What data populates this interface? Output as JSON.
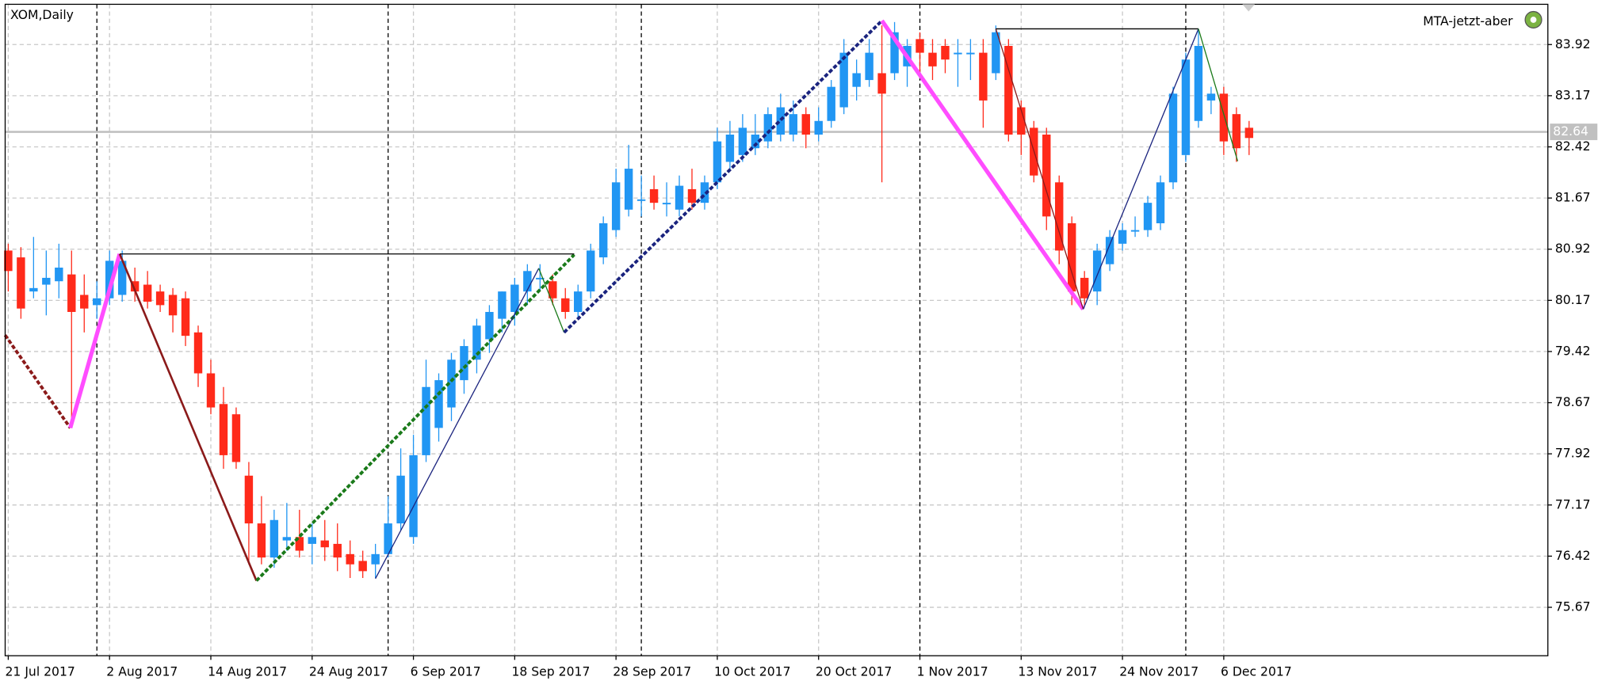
{
  "chart_data": {
    "type": "candlestick",
    "title": "XOM,Daily",
    "indicator": "MTA-jetzt-aber",
    "categories": [
      "21 Jul 2017",
      null,
      null,
      null,
      null,
      null,
      null,
      null,
      "2 Aug 2017",
      null,
      null,
      null,
      null,
      null,
      null,
      null,
      "14 Aug 2017",
      null,
      null,
      null,
      null,
      null,
      null,
      null,
      "24 Aug 2017",
      null,
      null,
      null,
      null,
      null,
      null,
      null,
      "6 Sep 2017",
      null,
      null,
      null,
      null,
      null,
      null,
      null,
      "18 Sep 2017",
      null,
      null,
      null,
      null,
      null,
      null,
      null,
      "28 Sep 2017",
      null,
      null,
      null,
      null,
      null,
      null,
      null,
      "10 Oct 2017",
      null,
      null,
      null,
      null,
      null,
      null,
      null,
      "20 Oct 2017",
      null,
      null,
      null,
      null,
      null,
      null,
      null,
      "1 Nov 2017",
      null,
      null,
      null,
      null,
      null,
      null,
      null,
      "13 Nov 2017",
      null,
      null,
      null,
      null,
      null,
      null,
      null,
      "24 Nov 2017",
      null,
      null,
      null,
      null,
      null,
      null,
      null,
      "6 Dec 2017",
      null,
      null
    ],
    "open": [
      80.9,
      80.8,
      80.3,
      80.4,
      80.45,
      80.55,
      80.25,
      80.1,
      80.2,
      80.25,
      80.45,
      80.4,
      80.3,
      80.25,
      80.2,
      79.7,
      79.1,
      78.65,
      78.5,
      77.6,
      76.9,
      76.4,
      76.65,
      76.7,
      76.6,
      76.65,
      76.6,
      76.45,
      76.35,
      76.3,
      76.45,
      76.9,
      76.7,
      77.9,
      78.3,
      78.6,
      79.0,
      79.3,
      79.6,
      79.9,
      80.0,
      80.3,
      80.5,
      80.45,
      80.2,
      80.0,
      80.3,
      80.8,
      81.2,
      81.5,
      81.65,
      81.8,
      81.6,
      81.5,
      81.8,
      81.6,
      81.9,
      82.2,
      82.3,
      82.4,
      82.5,
      82.6,
      82.6,
      82.9,
      82.6,
      82.8,
      83.0,
      83.3,
      83.4,
      83.5,
      83.5,
      83.6,
      84.0,
      83.8,
      83.9,
      83.8,
      83.8,
      83.8,
      83.5,
      83.9,
      83.0,
      82.7,
      82.6,
      81.9,
      81.3,
      80.5,
      80.3,
      80.7,
      81.0,
      81.2,
      81.2,
      81.3,
      81.9,
      82.3,
      82.8,
      83.1,
      83.2,
      82.9,
      82.7
    ],
    "high": [
      81.0,
      80.95,
      81.1,
      80.9,
      81.0,
      80.9,
      80.55,
      80.45,
      80.9,
      80.9,
      80.65,
      80.6,
      80.4,
      80.35,
      80.3,
      79.8,
      79.3,
      78.9,
      78.6,
      77.8,
      77.3,
      77.1,
      77.2,
      77.1,
      76.9,
      76.95,
      76.9,
      76.65,
      76.5,
      76.6,
      77.3,
      78.0,
      78.2,
      79.3,
      79.1,
      79.4,
      79.6,
      79.9,
      80.1,
      80.3,
      80.5,
      80.7,
      80.7,
      80.55,
      80.35,
      80.4,
      81.0,
      81.4,
      82.1,
      82.45,
      82.0,
      82.0,
      81.9,
      82.0,
      82.1,
      82.0,
      82.7,
      82.8,
      82.9,
      82.9,
      83.0,
      83.2,
      83.1,
      83.0,
      83.0,
      83.4,
      84.0,
      83.7,
      84.0,
      84.2,
      84.25,
      84.0,
      84.1,
      84.0,
      84.0,
      84.0,
      84.0,
      84.0,
      84.2,
      84.0,
      83.1,
      82.8,
      82.7,
      82.0,
      81.4,
      80.6,
      81.0,
      81.2,
      81.3,
      81.4,
      81.7,
      82.0,
      83.3,
      83.8,
      84.15,
      83.3,
      83.3,
      83.0,
      82.8
    ],
    "low": [
      80.3,
      79.9,
      80.2,
      79.95,
      80.2,
      78.4,
      79.7,
      79.9,
      80.1,
      80.15,
      80.15,
      80.05,
      80.0,
      79.7,
      79.5,
      78.9,
      78.5,
      77.7,
      77.7,
      76.3,
      76.3,
      76.25,
      76.5,
      76.4,
      76.3,
      76.35,
      76.2,
      76.1,
      76.1,
      76.1,
      76.4,
      76.8,
      76.6,
      77.8,
      78.1,
      78.4,
      78.8,
      79.1,
      79.4,
      79.7,
      79.8,
      80.1,
      80.3,
      80.1,
      79.9,
      79.9,
      80.2,
      80.7,
      81.1,
      81.4,
      81.4,
      81.5,
      81.4,
      81.4,
      81.5,
      81.5,
      81.8,
      82.1,
      82.2,
      82.3,
      82.4,
      82.5,
      82.5,
      82.4,
      82.5,
      82.7,
      82.9,
      83.1,
      83.3,
      81.9,
      83.4,
      83.3,
      83.5,
      83.4,
      83.5,
      83.3,
      83.4,
      82.7,
      83.4,
      82.5,
      82.3,
      81.9,
      81.2,
      80.7,
      80.1,
      80.1,
      80.1,
      80.6,
      80.9,
      81.1,
      81.1,
      81.2,
      81.8,
      82.2,
      82.7,
      82.9,
      82.3,
      82.2,
      82.3
    ],
    "close": [
      80.6,
      80.05,
      80.35,
      80.5,
      80.65,
      80.0,
      80.05,
      80.2,
      80.75,
      80.75,
      80.3,
      80.15,
      80.1,
      79.95,
      79.65,
      79.1,
      78.6,
      77.9,
      77.8,
      76.9,
      76.4,
      76.95,
      76.7,
      76.5,
      76.7,
      76.55,
      76.4,
      76.3,
      76.2,
      76.45,
      76.9,
      77.6,
      77.9,
      78.9,
      79.0,
      79.3,
      79.5,
      79.8,
      80.0,
      80.3,
      80.4,
      80.6,
      80.5,
      80.2,
      80.0,
      80.3,
      80.9,
      81.3,
      81.9,
      82.1,
      81.65,
      81.6,
      81.6,
      81.85,
      81.6,
      81.9,
      82.5,
      82.6,
      82.7,
      82.6,
      82.9,
      83.0,
      82.9,
      82.6,
      82.8,
      83.3,
      83.8,
      83.5,
      83.8,
      83.2,
      84.1,
      83.9,
      83.8,
      83.6,
      83.7,
      83.8,
      83.8,
      83.1,
      84.1,
      82.6,
      82.6,
      82.0,
      81.4,
      80.9,
      80.3,
      80.2,
      80.9,
      81.1,
      81.2,
      81.2,
      81.6,
      81.9,
      83.2,
      83.7,
      83.9,
      83.2,
      82.5,
      82.4,
      82.55
    ],
    "up_color": "#2196f3",
    "down_color": "#ff2a1a",
    "ylim": [
      74.96,
      84.51
    ],
    "yticks": [
      83.92,
      83.17,
      82.42,
      81.67,
      80.92,
      80.17,
      79.42,
      78.67,
      77.92,
      77.17,
      76.42,
      75.67
    ],
    "current_price": 82.64,
    "grid": true,
    "separators": [
      7,
      30,
      50,
      72,
      93
    ],
    "overlays": [
      {
        "color": "#8b1a1a",
        "dashed": true,
        "width": 3,
        "x": [
          -0.25,
          4.9
        ],
        "values": [
          79.66,
          78.3
        ]
      },
      {
        "color": "#ff4dff",
        "dashed": false,
        "width": 4,
        "x": [
          4.9,
          8.8
        ],
        "values": [
          78.3,
          80.85
        ]
      },
      {
        "color": "#8b1a1a",
        "dashed": false,
        "width": 2,
        "x": [
          8.8,
          19.6
        ],
        "values": [
          80.85,
          76.06
        ]
      },
      {
        "color": "#1a7a1a",
        "dashed": true,
        "width": 3,
        "x": [
          19.6,
          44.7
        ],
        "values": [
          76.06,
          80.84
        ]
      },
      {
        "color": "#000000",
        "dashed": false,
        "width": 1,
        "x": [
          8.8,
          44.7
        ],
        "values": [
          80.85,
          80.85
        ]
      },
      {
        "color": "#1a237e",
        "dashed": false,
        "width": 1,
        "x": [
          29,
          41.9
        ],
        "values": [
          76.09,
          80.64
        ]
      },
      {
        "color": "#1a7a1a",
        "dashed": false,
        "width": 1,
        "x": [
          41.9,
          43.9
        ],
        "values": [
          80.64,
          79.7
        ]
      },
      {
        "color": "#1a237e",
        "dashed": true,
        "width": 3,
        "x": [
          43.9,
          69
        ],
        "values": [
          79.7,
          84.27
        ]
      },
      {
        "color": "#ff4dff",
        "dashed": false,
        "width": 4,
        "x": [
          69,
          84.9
        ],
        "values": [
          84.27,
          80.04
        ]
      },
      {
        "color": "#8b1a1a",
        "dashed": false,
        "width": 1,
        "x": [
          78,
          84.9
        ],
        "values": [
          84.15,
          80.04
        ]
      },
      {
        "color": "#000000",
        "dashed": false,
        "width": 1,
        "x": [
          78,
          94
        ],
        "values": [
          84.15,
          84.15
        ]
      },
      {
        "color": "#1a237e",
        "dashed": false,
        "width": 1,
        "x": [
          84.9,
          94
        ],
        "values": [
          80.04,
          84.15
        ]
      },
      {
        "color": "#1a7a1a",
        "dashed": false,
        "width": 1,
        "x": [
          94,
          97.1
        ],
        "values": [
          84.15,
          82.21
        ]
      }
    ]
  }
}
